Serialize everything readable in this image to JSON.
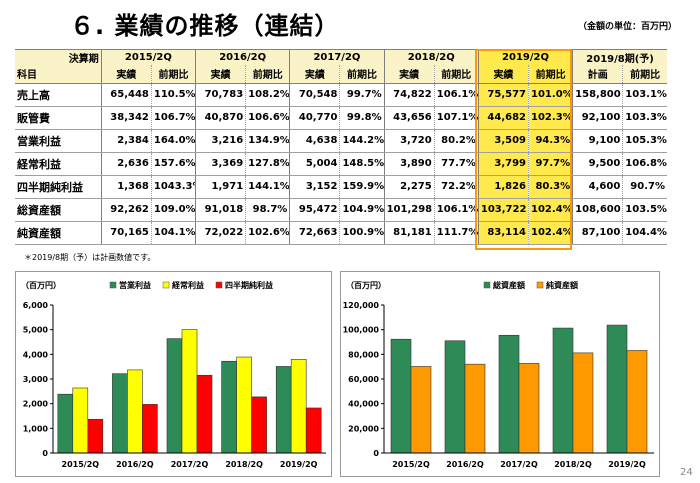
{
  "title": "６. 業績の推移（連結）",
  "unit_note": "（金額の単位：百万円）",
  "table": {
    "corner_top": "決算期",
    "corner_bottom": "科目",
    "periods": [
      "2015/2Q",
      "2016/2Q",
      "2017/2Q",
      "2018/2Q",
      "2019/2Q",
      "2019/8期(予)"
    ],
    "sub_headers": [
      [
        "実績",
        "前期比"
      ],
      [
        "実績",
        "前期比"
      ],
      [
        "実績",
        "前期比"
      ],
      [
        "実績",
        "前期比"
      ],
      [
        "実績",
        "前期比"
      ],
      [
        "計画",
        "前期比"
      ]
    ],
    "highlight_period": "2019/2Q",
    "rows": [
      {
        "label": "売上高",
        "values": [
          "65,448",
          "110.5%",
          "70,783",
          "108.2%",
          "70,548",
          "99.7%",
          "74,822",
          "106.1%",
          "75,577",
          "101.0%",
          "158,800",
          "103.1%"
        ]
      },
      {
        "label": "販管費",
        "values": [
          "38,342",
          "106.7%",
          "40,870",
          "106.6%",
          "40,770",
          "99.8%",
          "43,656",
          "107.1%",
          "44,682",
          "102.3%",
          "92,100",
          "103.3%"
        ]
      },
      {
        "label": "営業利益",
        "values": [
          "2,384",
          "164.0%",
          "3,216",
          "134.9%",
          "4,638",
          "144.2%",
          "3,720",
          "80.2%",
          "3,509",
          "94.3%",
          "9,100",
          "105.3%"
        ]
      },
      {
        "label": "経常利益",
        "values": [
          "2,636",
          "157.6%",
          "3,369",
          "127.8%",
          "5,004",
          "148.5%",
          "3,890",
          "77.7%",
          "3,799",
          "97.7%",
          "9,500",
          "106.8%"
        ]
      },
      {
        "label": "四半期純利益",
        "values": [
          "1,368",
          "1043.3%",
          "1,971",
          "144.1%",
          "3,152",
          "159.9%",
          "2,275",
          "72.2%",
          "1,826",
          "80.3%",
          "4,600",
          "90.7%"
        ]
      },
      {
        "label": "総資産額",
        "values": [
          "92,262",
          "109.0%",
          "91,018",
          "98.7%",
          "95,472",
          "104.9%",
          "101,298",
          "106.1%",
          "103,722",
          "102.4%",
          "108,600",
          "103.5%"
        ]
      },
      {
        "label": "純資産額",
        "values": [
          "70,165",
          "104.1%",
          "72,022",
          "102.6%",
          "72,663",
          "100.9%",
          "81,181",
          "111.7%",
          "83,114",
          "102.4%",
          "87,100",
          "104.4%"
        ]
      }
    ]
  },
  "footnote": "＊2019/8期（予）は計画数値です。",
  "page_number": "24",
  "chart_data": [
    {
      "type": "bar",
      "unit_label": "（百万円）",
      "categories": [
        "2015/2Q",
        "2016/2Q",
        "2017/2Q",
        "2018/2Q",
        "2019/2Q"
      ],
      "series": [
        {
          "name": "営業利益",
          "color": "#2e8b57",
          "values": [
            2384,
            3216,
            4638,
            3720,
            3509
          ]
        },
        {
          "name": "経常利益",
          "color": "#ffff00",
          "values": [
            2636,
            3369,
            5004,
            3890,
            3799
          ]
        },
        {
          "name": "四半期純利益",
          "color": "#ff0000",
          "values": [
            1368,
            1971,
            3152,
            2275,
            1826
          ]
        }
      ],
      "ylim": [
        0,
        6000
      ],
      "yticks": [
        0,
        1000,
        2000,
        3000,
        4000,
        5000,
        6000
      ],
      "ytick_labels": [
        "0",
        "1,000",
        "2,000",
        "3,000",
        "4,000",
        "5,000",
        "6,000"
      ],
      "legend_position": "top",
      "grid": false
    },
    {
      "type": "bar",
      "unit_label": "（百万円）",
      "categories": [
        "2015/2Q",
        "2016/2Q",
        "2017/2Q",
        "2018/2Q",
        "2019/2Q"
      ],
      "series": [
        {
          "name": "総資産額",
          "color": "#2e8b57",
          "values": [
            92262,
            91018,
            95472,
            101298,
            103722
          ]
        },
        {
          "name": "純資産額",
          "color": "#ff9900",
          "values": [
            70165,
            72022,
            72663,
            81181,
            83114
          ]
        }
      ],
      "ylim": [
        0,
        120000
      ],
      "yticks": [
        0,
        20000,
        40000,
        60000,
        80000,
        100000,
        120000
      ],
      "ytick_labels": [
        "0",
        "20,000",
        "40,000",
        "60,000",
        "80,000",
        "100,000",
        "120,000"
      ],
      "legend_position": "top",
      "grid": false
    }
  ]
}
